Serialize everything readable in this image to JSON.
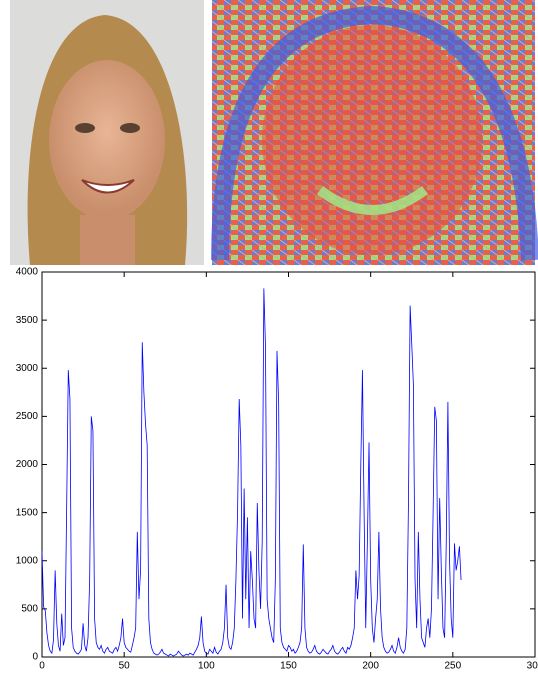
{
  "chart_data": {
    "type": "line",
    "x": [
      0,
      1,
      2,
      3,
      4,
      5,
      6,
      7,
      8,
      9,
      10,
      11,
      12,
      13,
      14,
      15,
      16,
      17,
      18,
      19,
      20,
      21,
      22,
      23,
      24,
      25,
      26,
      27,
      28,
      29,
      30,
      31,
      32,
      33,
      34,
      35,
      36,
      37,
      38,
      39,
      40,
      41,
      42,
      43,
      44,
      45,
      46,
      47,
      48,
      49,
      50,
      51,
      52,
      53,
      54,
      55,
      56,
      57,
      58,
      59,
      60,
      61,
      62,
      63,
      64,
      65,
      66,
      67,
      68,
      69,
      70,
      71,
      72,
      73,
      74,
      75,
      76,
      77,
      78,
      79,
      80,
      81,
      82,
      83,
      84,
      85,
      86,
      87,
      88,
      89,
      90,
      91,
      92,
      93,
      94,
      95,
      96,
      97,
      98,
      99,
      100,
      101,
      102,
      103,
      104,
      105,
      106,
      107,
      108,
      109,
      110,
      111,
      112,
      113,
      114,
      115,
      116,
      117,
      118,
      119,
      120,
      121,
      122,
      123,
      124,
      125,
      126,
      127,
      128,
      129,
      130,
      131,
      132,
      133,
      134,
      135,
      136,
      137,
      138,
      139,
      140,
      141,
      142,
      143,
      144,
      145,
      146,
      147,
      148,
      149,
      150,
      151,
      152,
      153,
      154,
      155,
      156,
      157,
      158,
      159,
      160,
      161,
      162,
      163,
      164,
      165,
      166,
      167,
      168,
      169,
      170,
      171,
      172,
      173,
      174,
      175,
      176,
      177,
      178,
      179,
      180,
      181,
      182,
      183,
      184,
      185,
      186,
      187,
      188,
      189,
      190,
      191,
      192,
      193,
      194,
      195,
      196,
      197,
      198,
      199,
      200,
      201,
      202,
      203,
      204,
      205,
      206,
      207,
      208,
      209,
      210,
      211,
      212,
      213,
      214,
      215,
      216,
      217,
      218,
      219,
      220,
      221,
      222,
      223,
      224,
      225,
      226,
      227,
      228,
      229,
      230,
      231,
      232,
      233,
      234,
      235,
      236,
      237,
      238,
      239,
      240,
      241,
      242,
      243,
      244,
      245,
      246,
      247,
      248,
      249,
      250,
      251,
      252,
      253,
      254,
      255
    ],
    "series": [
      {
        "color": "#0000ff",
        "values": [
          1100,
          520,
          480,
          250,
          120,
          60,
          40,
          180,
          900,
          350,
          120,
          60,
          450,
          120,
          200,
          1550,
          2980,
          2680,
          300,
          100,
          60,
          40,
          30,
          50,
          80,
          350,
          120,
          60,
          200,
          800,
          2500,
          2350,
          400,
          150,
          100,
          80,
          120,
          60,
          40,
          80,
          100,
          60,
          50,
          40,
          80,
          100,
          60,
          120,
          200,
          400,
          150,
          100,
          80,
          60,
          50,
          120,
          200,
          300,
          1300,
          600,
          900,
          3270,
          2750,
          2420,
          2200,
          400,
          150,
          80,
          40,
          30,
          20,
          30,
          50,
          80,
          40,
          30,
          20,
          10,
          30,
          20,
          10,
          20,
          30,
          60,
          40,
          20,
          10,
          20,
          30,
          20,
          40,
          30,
          20,
          50,
          80,
          120,
          200,
          420,
          150,
          60,
          40,
          30,
          80,
          60,
          40,
          100,
          50,
          30,
          60,
          80,
          150,
          300,
          750,
          200,
          100,
          80,
          150,
          300,
          800,
          1500,
          2680,
          2200,
          400,
          1750,
          600,
          1450,
          300,
          1100,
          800,
          400,
          300,
          1600,
          900,
          500,
          1200,
          3830,
          3220,
          600,
          400,
          300,
          200,
          150,
          800,
          3180,
          2650,
          300,
          150,
          100,
          80,
          60,
          120,
          100,
          60,
          80,
          40,
          60,
          100,
          150,
          300,
          1170,
          300,
          100,
          60,
          40,
          50,
          80,
          120,
          60,
          40,
          30,
          50,
          80,
          60,
          40,
          30,
          60,
          80,
          120,
          60,
          40,
          30,
          50,
          80,
          100,
          60,
          40,
          100,
          80,
          120,
          200,
          300,
          900,
          600,
          850,
          2000,
          2980,
          1500,
          300,
          1200,
          2230,
          800,
          300,
          150,
          400,
          600,
          1300,
          500,
          200,
          100,
          60,
          40,
          50,
          80,
          120,
          60,
          40,
          100,
          200,
          100,
          60,
          40,
          80,
          300,
          1600,
          3650,
          3250,
          2830,
          800,
          300,
          1300,
          600,
          200,
          150,
          100,
          300,
          400,
          200,
          500,
          1500,
          2600,
          2450,
          600,
          1650,
          900,
          300,
          200,
          1200,
          2650,
          1000,
          400,
          200,
          1180,
          900,
          1000,
          1150,
          800
        ]
      }
    ],
    "xlim": [
      0,
      300
    ],
    "xticks": [
      0,
      50,
      100,
      150,
      200,
      250,
      300
    ],
    "ylim": [
      0,
      4000
    ],
    "yticks": [
      0,
      500,
      1000,
      1500,
      2000,
      2500,
      3000,
      3500,
      4000
    ],
    "grid": false
  }
}
